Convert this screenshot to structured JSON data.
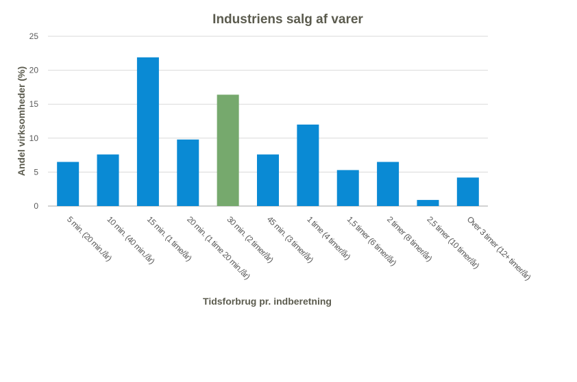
{
  "chart_data": {
    "type": "bar",
    "title": "Industriens salg af varer",
    "xlabel": "Tidsforbrug pr. indberetning",
    "ylabel": "Andel virksomheder  (%)",
    "ylim": [
      0,
      25
    ],
    "yticks": [
      0,
      5,
      10,
      15,
      20,
      25
    ],
    "grid": true,
    "legend": "none",
    "categories": [
      "5 min. (20 min./år)",
      "10 min. (40 min./år)",
      "15 min. (1 time/år)",
      "20 min. (1 time 20 min./år)",
      "30 min. (2 timer/år)",
      "45 min. (3 timer/år)",
      "1 time (4 timer/år)",
      "1,5 timer (6 timer/år)",
      "2 timer (8 timer/år)",
      "2,5 timer (10 timer/år)",
      "Over 3 timer (12+ timer/år)"
    ],
    "values": [
      6.5,
      7.6,
      21.9,
      9.8,
      16.4,
      7.6,
      12.0,
      5.3,
      6.5,
      0.9,
      4.2
    ],
    "highlight_index": 4,
    "colors": {
      "bar": "#0a8ad4",
      "highlight": "#76a96d",
      "grid": "#d9d9d9",
      "axis": "#a6a6a6"
    }
  }
}
